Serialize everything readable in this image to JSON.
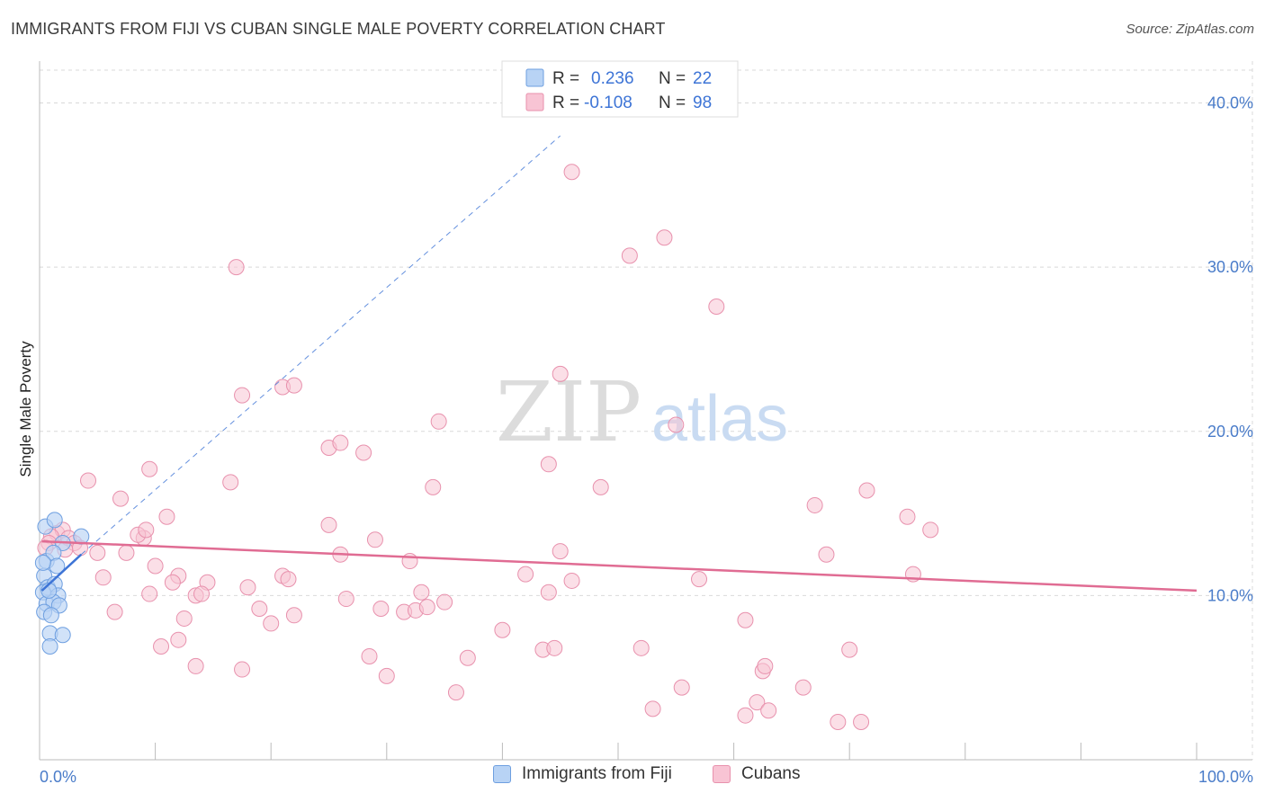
{
  "title": "IMMIGRANTS FROM FIJI VS CUBAN SINGLE MALE POVERTY CORRELATION CHART",
  "source": "Source: ZipAtlas.com",
  "watermark": {
    "zip": "ZIP",
    "atlas": "atlas"
  },
  "colors": {
    "fiji_fill": "#b8d3f5",
    "fiji_stroke": "#6e9fe0",
    "fiji_line": "#3d74d6",
    "cuba_fill": "#f8c4d4",
    "cuba_stroke": "#e891ad",
    "cuba_line": "#e06c93",
    "axis_label": "#4a7cc9",
    "grid": "#d9d9d9"
  },
  "legend": {
    "fiji": {
      "r_label": "R =",
      "r_value": "0.236",
      "n_label": "N =",
      "n_value": "22"
    },
    "cuba": {
      "r_label": "R =",
      "r_value": "-0.108",
      "n_label": "N =",
      "n_value": "98"
    }
  },
  "chart_data": {
    "type": "scatter",
    "title": "IMMIGRANTS FROM FIJI VS CUBAN SINGLE MALE POVERTY CORRELATION CHART",
    "xlabel": "",
    "ylabel": "Single Male Poverty",
    "xlim": [
      0,
      100
    ],
    "ylim": [
      0,
      42
    ],
    "x_tick_labels": [
      {
        "value": 0,
        "label": "0.0%"
      },
      {
        "value": 100,
        "label": "100.0%"
      }
    ],
    "y_tick_labels": [
      {
        "value": 10,
        "label": "10.0%"
      },
      {
        "value": 20,
        "label": "20.0%"
      },
      {
        "value": 30,
        "label": "30.0%"
      },
      {
        "value": 40,
        "label": "40.0%"
      }
    ],
    "series": [
      {
        "name": "Immigrants from Fiji",
        "color": "fiji",
        "points": [
          [
            0.5,
            14.2
          ],
          [
            1.3,
            14.6
          ],
          [
            2.0,
            13.2
          ],
          [
            3.6,
            13.6
          ],
          [
            0.6,
            12.1
          ],
          [
            1.2,
            12.6
          ],
          [
            0.4,
            11.2
          ],
          [
            1.5,
            11.8
          ],
          [
            0.7,
            10.5
          ],
          [
            1.3,
            10.7
          ],
          [
            0.3,
            10.2
          ],
          [
            1.6,
            10.0
          ],
          [
            0.6,
            9.5
          ],
          [
            1.2,
            9.6
          ],
          [
            1.7,
            9.4
          ],
          [
            0.4,
            9.0
          ],
          [
            1.0,
            8.8
          ],
          [
            0.9,
            7.7
          ],
          [
            2.0,
            7.6
          ],
          [
            0.9,
            6.9
          ],
          [
            0.3,
            12.0
          ],
          [
            0.8,
            10.3
          ]
        ],
        "trend_solid": [
          [
            0.2,
            10.3
          ],
          [
            3.6,
            12.5
          ]
        ],
        "trend_dashed": [
          [
            3.6,
            12.5
          ],
          [
            45.0,
            38.0
          ]
        ]
      },
      {
        "name": "Cubans",
        "color": "cuba",
        "points": [
          [
            46.0,
            35.8
          ],
          [
            54.0,
            31.8
          ],
          [
            51.0,
            30.7
          ],
          [
            17.0,
            30.0
          ],
          [
            58.5,
            27.6
          ],
          [
            45.0,
            23.5
          ],
          [
            21.0,
            22.7
          ],
          [
            17.5,
            22.2
          ],
          [
            22.0,
            22.8
          ],
          [
            34.5,
            20.6
          ],
          [
            55.0,
            20.4
          ],
          [
            25.0,
            19.0
          ],
          [
            26.0,
            19.3
          ],
          [
            28.0,
            18.7
          ],
          [
            44.0,
            18.0
          ],
          [
            9.5,
            17.7
          ],
          [
            4.2,
            17.0
          ],
          [
            16.5,
            16.9
          ],
          [
            34.0,
            16.6
          ],
          [
            48.5,
            16.6
          ],
          [
            71.5,
            16.4
          ],
          [
            67.0,
            15.5
          ],
          [
            7.0,
            15.9
          ],
          [
            11.0,
            14.8
          ],
          [
            25.0,
            14.3
          ],
          [
            75.0,
            14.8
          ],
          [
            77.0,
            14.0
          ],
          [
            1.5,
            13.8
          ],
          [
            2.0,
            14.0
          ],
          [
            1.0,
            13.6
          ],
          [
            2.5,
            13.5
          ],
          [
            0.8,
            13.2
          ],
          [
            3.0,
            13.2
          ],
          [
            3.5,
            12.9
          ],
          [
            2.2,
            12.8
          ],
          [
            5.0,
            12.6
          ],
          [
            7.5,
            12.6
          ],
          [
            9.0,
            13.5
          ],
          [
            8.5,
            13.7
          ],
          [
            9.2,
            14.0
          ],
          [
            29.0,
            13.4
          ],
          [
            45.0,
            12.7
          ],
          [
            26.0,
            12.5
          ],
          [
            32.0,
            12.1
          ],
          [
            68.0,
            12.5
          ],
          [
            10.0,
            11.8
          ],
          [
            12.0,
            11.2
          ],
          [
            14.5,
            10.8
          ],
          [
            21.0,
            11.2
          ],
          [
            21.5,
            11.0
          ],
          [
            42.0,
            11.3
          ],
          [
            46.0,
            10.9
          ],
          [
            57.0,
            11.0
          ],
          [
            75.5,
            11.3
          ],
          [
            5.5,
            11.1
          ],
          [
            11.5,
            10.8
          ],
          [
            9.5,
            10.1
          ],
          [
            13.5,
            10.0
          ],
          [
            14.0,
            10.1
          ],
          [
            18.0,
            10.5
          ],
          [
            26.5,
            9.8
          ],
          [
            33.0,
            10.2
          ],
          [
            35.0,
            9.6
          ],
          [
            44.0,
            10.2
          ],
          [
            6.5,
            9.0
          ],
          [
            19.0,
            9.2
          ],
          [
            20.0,
            8.3
          ],
          [
            22.0,
            8.8
          ],
          [
            29.5,
            9.2
          ],
          [
            31.5,
            9.0
          ],
          [
            32.5,
            9.1
          ],
          [
            33.5,
            9.3
          ],
          [
            12.5,
            8.6
          ],
          [
            40.0,
            7.9
          ],
          [
            61.0,
            8.5
          ],
          [
            10.5,
            6.9
          ],
          [
            12.0,
            7.3
          ],
          [
            28.5,
            6.3
          ],
          [
            37.0,
            6.2
          ],
          [
            43.5,
            6.7
          ],
          [
            44.5,
            6.8
          ],
          [
            52.0,
            6.8
          ],
          [
            70.0,
            6.7
          ],
          [
            13.5,
            5.7
          ],
          [
            17.5,
            5.5
          ],
          [
            30.0,
            5.1
          ],
          [
            62.5,
            5.4
          ],
          [
            62.7,
            5.7
          ],
          [
            55.5,
            4.4
          ],
          [
            66.0,
            4.4
          ],
          [
            36.0,
            4.1
          ],
          [
            53.0,
            3.1
          ],
          [
            62.0,
            3.5
          ],
          [
            63.0,
            3.0
          ],
          [
            61.0,
            2.7
          ],
          [
            69.0,
            2.3
          ],
          [
            71.0,
            2.3
          ],
          [
            0.5,
            12.9
          ]
        ],
        "trend_solid": [
          [
            0.2,
            13.3
          ],
          [
            100.0,
            10.3
          ]
        ]
      }
    ]
  }
}
